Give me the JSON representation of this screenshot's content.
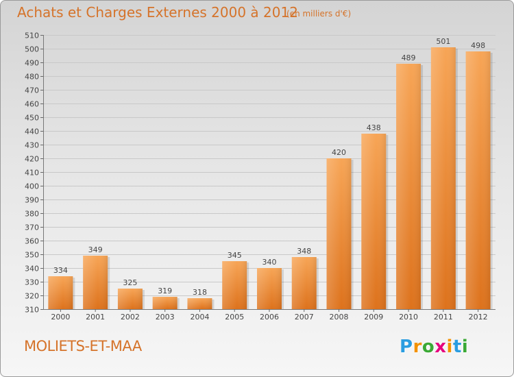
{
  "chart_data": {
    "type": "bar",
    "title": "Achats et Charges Externes 2000 à 2012",
    "subtitle": "(en milliers d'€)",
    "categories": [
      "2000",
      "2001",
      "2002",
      "2003",
      "2004",
      "2005",
      "2006",
      "2007",
      "2008",
      "2009",
      "2010",
      "2011",
      "2012"
    ],
    "values": [
      334,
      349,
      325,
      319,
      318,
      345,
      340,
      348,
      420,
      438,
      489,
      501,
      498
    ],
    "ylim": [
      310,
      510
    ],
    "ytick_step": 10,
    "grid": true,
    "bar_color": "#f0892f",
    "xlabel": "",
    "ylabel": ""
  },
  "location": "MOLIETS-ET-MAA",
  "logo": {
    "letters": [
      "P",
      "r",
      "o",
      "x",
      "i",
      "t",
      "i"
    ],
    "colors": [
      "#2a9de0",
      "#f39200",
      "#3aa935",
      "#e5007e",
      "#f39200",
      "#2a9de0",
      "#3aa935"
    ]
  }
}
